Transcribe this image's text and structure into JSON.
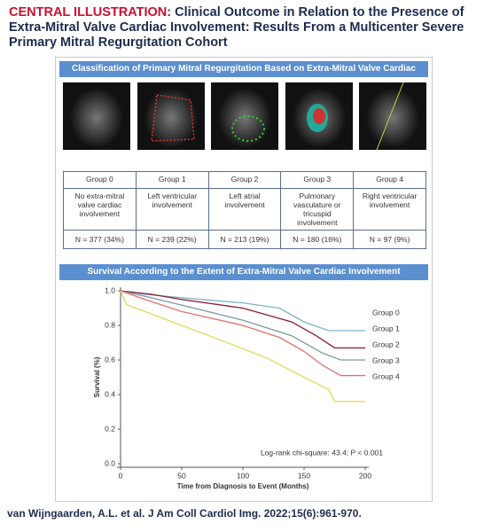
{
  "header": {
    "label": "CENTRAL ILLUSTRATION:",
    "title": "Clinical Outcome in Relation to the Presence of Extra-Mitral Valve Cardiac Involvement: Results From a Multicenter Severe Primary Mitral Regurgitation Cohort"
  },
  "classification": {
    "title": "Classification of Primary Mitral Regurgitation Based on Extra-Mitral Valve Cardiac Involvement"
  },
  "table": {
    "rows": [
      [
        "Group 0",
        "Group 1",
        "Group 2",
        "Group 3",
        "Group 4"
      ],
      [
        "No extra-mitral valve cardiac involvement",
        "Left ventricular involvement",
        "Left atrial involvement",
        "Pulmonary vasculature or tricuspid involvement",
        "Right ventricular involvement"
      ],
      [
        "N = 377 (34%)",
        "N = 239 (22%)",
        "N = 213 (19%)",
        "N = 180 (16%)",
        "N = 97 (9%)"
      ]
    ]
  },
  "survival": {
    "title": "Survival According to the Extent of Extra-Mitral Valve Cardiac Involvement"
  },
  "chart_data": {
    "type": "line",
    "x_label": "Time from Diagnosis to Event (Months)",
    "y_label": "Survival (%)",
    "annotation": "Log-rank chi-square: 43.4; P < 0.001",
    "xlim": [
      0,
      200
    ],
    "xticks": [
      0,
      50,
      100,
      150,
      200
    ],
    "ylim": [
      0,
      1
    ],
    "yticks": [
      {
        "value": 0,
        "label": "0.0"
      },
      0.2,
      0.4,
      0.6,
      0.8,
      {
        "value": 1,
        "label": "1.0"
      }
    ],
    "series": [
      {
        "name": "Group 0",
        "color": "#7fb3c8",
        "x": [
          0,
          20,
          50,
          100,
          130,
          150,
          170,
          200
        ],
        "values": [
          1.0,
          0.98,
          0.96,
          0.93,
          0.9,
          0.82,
          0.77,
          0.77
        ]
      },
      {
        "name": "Group 1",
        "color": "#8b1a3a",
        "x": [
          0,
          25,
          50,
          100,
          140,
          160,
          175,
          200
        ],
        "values": [
          1.0,
          0.98,
          0.95,
          0.9,
          0.82,
          0.74,
          0.67,
          0.67
        ]
      },
      {
        "name": "Group 2",
        "color": "#7a9aa0",
        "x": [
          0,
          25,
          60,
          100,
          140,
          165,
          180,
          200
        ],
        "values": [
          1.0,
          0.96,
          0.9,
          0.83,
          0.74,
          0.64,
          0.6,
          0.6
        ]
      },
      {
        "name": "Group 3",
        "color": "#e0706a",
        "x": [
          0,
          20,
          50,
          100,
          130,
          150,
          165,
          180,
          200
        ],
        "values": [
          1.0,
          0.95,
          0.88,
          0.8,
          0.73,
          0.65,
          0.57,
          0.51,
          0.51
        ]
      },
      {
        "name": "Group 4",
        "color": "#e2d95a",
        "x": [
          0,
          5,
          20,
          50,
          80,
          120,
          150,
          170,
          175,
          200
        ],
        "values": [
          1.0,
          0.92,
          0.88,
          0.8,
          0.72,
          0.61,
          0.5,
          0.43,
          0.36,
          0.36
        ]
      }
    ]
  },
  "citation": "van Wijngaarden, A.L. et al. J Am Coll Cardiol Img. 2022;15(6):961-970."
}
